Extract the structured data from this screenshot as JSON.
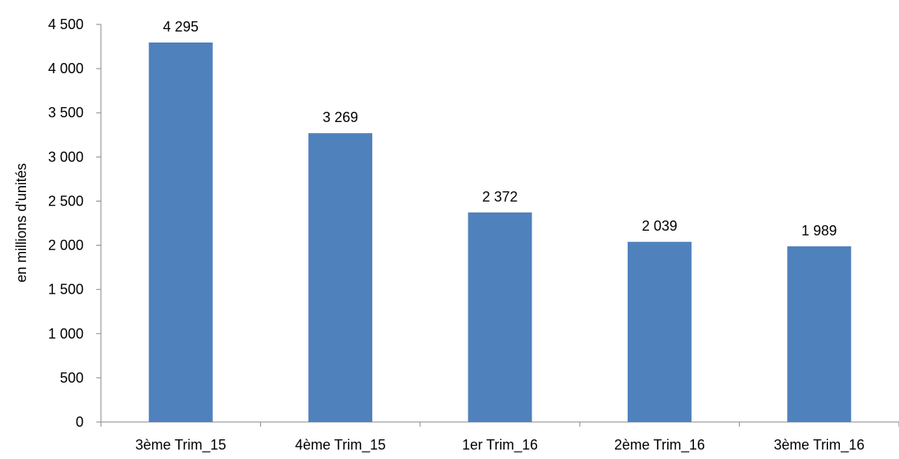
{
  "chart_data": {
    "type": "bar",
    "categories": [
      "3ème Trim_15",
      "4ème Trim_15",
      "1er Trim_16",
      "2ème Trim_16",
      "3ème Trim_16"
    ],
    "values": [
      4295,
      3269,
      2372,
      2039,
      1989
    ],
    "value_labels": [
      "4 295",
      "3 269",
      "2 372",
      "2 039",
      "1 989"
    ],
    "title": "",
    "xlabel": "",
    "ylabel": "en millions d'unités",
    "ylim": [
      0,
      4500
    ],
    "yticks": [
      0,
      500,
      1000,
      1500,
      2000,
      2500,
      3000,
      3500,
      4000,
      4500
    ],
    "ytick_labels": [
      "0",
      "500",
      "1 000",
      "1 500",
      "2 000",
      "2 500",
      "3 000",
      "3 500",
      "4 000",
      "4 500"
    ],
    "grid": false,
    "legend": "none",
    "bar_color": "#4F81BD",
    "axis_color": "#868686"
  }
}
